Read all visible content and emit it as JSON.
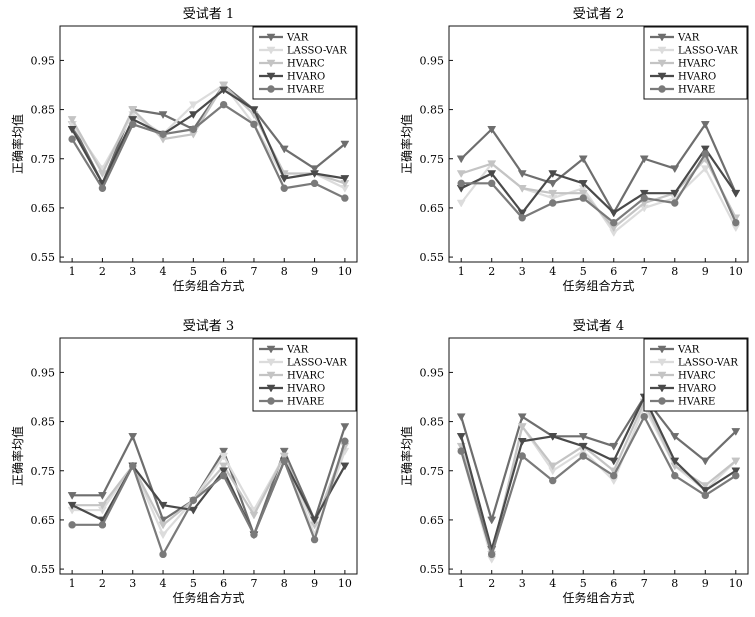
{
  "chart_data": [
    {
      "type": "line",
      "title": "受试者 1",
      "xlabel": "任务组合方式",
      "ylabel": "正确率均值",
      "x": [
        1,
        2,
        3,
        4,
        5,
        6,
        7,
        8,
        9,
        10
      ],
      "yticks": [
        "0.55",
        "0.65",
        "0.75",
        "0.85",
        "0.95"
      ],
      "ylim": [
        0.54,
        1.02
      ],
      "legend_position": "top-right",
      "series": [
        {
          "name": "VAR",
          "color": "#6e6e6e",
          "marker": "triangle-down",
          "values": [
            0.82,
            0.7,
            0.85,
            0.84,
            0.81,
            0.9,
            0.85,
            0.77,
            0.73,
            0.78
          ]
        },
        {
          "name": "LASSO-VAR",
          "color": "#dcdcdc",
          "marker": "triangle-down",
          "values": [
            0.82,
            0.73,
            0.84,
            0.8,
            0.86,
            0.9,
            0.82,
            0.71,
            0.72,
            0.69
          ]
        },
        {
          "name": "HVARC",
          "color": "#c4c4c4",
          "marker": "triangle-down",
          "values": [
            0.83,
            0.72,
            0.85,
            0.79,
            0.8,
            0.9,
            0.84,
            0.72,
            0.72,
            0.7
          ]
        },
        {
          "name": "HVARO",
          "color": "#4a4a4a",
          "marker": "triangle-down",
          "values": [
            0.81,
            0.7,
            0.83,
            0.8,
            0.84,
            0.89,
            0.85,
            0.71,
            0.72,
            0.71
          ]
        },
        {
          "name": "HVARE",
          "color": "#7a7a7a",
          "marker": "circle",
          "values": [
            0.79,
            0.69,
            0.82,
            0.8,
            0.81,
            0.86,
            0.82,
            0.69,
            0.7,
            0.67
          ]
        }
      ]
    },
    {
      "type": "line",
      "title": "受试者 2",
      "xlabel": "任务组合方式",
      "ylabel": "正确率均值",
      "x": [
        1,
        2,
        3,
        4,
        5,
        6,
        7,
        8,
        9,
        10
      ],
      "yticks": [
        "0.55",
        "0.65",
        "0.75",
        "0.85",
        "0.95"
      ],
      "ylim": [
        0.54,
        1.02
      ],
      "legend_position": "top-right",
      "series": [
        {
          "name": "VAR",
          "color": "#6e6e6e",
          "marker": "triangle-down",
          "values": [
            0.75,
            0.81,
            0.72,
            0.7,
            0.75,
            0.64,
            0.75,
            0.73,
            0.82,
            0.68
          ]
        },
        {
          "name": "LASSO-VAR",
          "color": "#dcdcdc",
          "marker": "triangle-down",
          "values": [
            0.66,
            0.74,
            0.69,
            0.67,
            0.69,
            0.6,
            0.65,
            0.67,
            0.73,
            0.61
          ]
        },
        {
          "name": "HVARC",
          "color": "#c4c4c4",
          "marker": "triangle-down",
          "values": [
            0.72,
            0.74,
            0.69,
            0.68,
            0.68,
            0.61,
            0.66,
            0.68,
            0.75,
            0.63
          ]
        },
        {
          "name": "HVARO",
          "color": "#4a4a4a",
          "marker": "triangle-down",
          "values": [
            0.69,
            0.72,
            0.64,
            0.72,
            0.7,
            0.64,
            0.68,
            0.68,
            0.77,
            0.68
          ]
        },
        {
          "name": "HVARE",
          "color": "#7a7a7a",
          "marker": "circle",
          "values": [
            0.7,
            0.7,
            0.63,
            0.66,
            0.67,
            0.62,
            0.67,
            0.66,
            0.76,
            0.62
          ]
        }
      ]
    },
    {
      "type": "line",
      "title": "受试者 3",
      "xlabel": "任务组合方式",
      "ylabel": "正确率均值",
      "x": [
        1,
        2,
        3,
        4,
        5,
        6,
        7,
        8,
        9,
        10
      ],
      "yticks": [
        "0.55",
        "0.65",
        "0.75",
        "0.85",
        "0.95"
      ],
      "ylim": [
        0.54,
        1.02
      ],
      "legend_position": "top-right",
      "series": [
        {
          "name": "VAR",
          "color": "#6e6e6e",
          "marker": "triangle-down",
          "values": [
            0.7,
            0.7,
            0.82,
            0.65,
            0.69,
            0.79,
            0.62,
            0.79,
            0.65,
            0.84
          ]
        },
        {
          "name": "LASSO-VAR",
          "color": "#dcdcdc",
          "marker": "triangle-down",
          "values": [
            0.67,
            0.67,
            0.76,
            0.62,
            0.69,
            0.78,
            0.67,
            0.78,
            0.62,
            0.79
          ]
        },
        {
          "name": "HVARC",
          "color": "#c4c4c4",
          "marker": "triangle-down",
          "values": [
            0.68,
            0.68,
            0.76,
            0.64,
            0.69,
            0.76,
            0.66,
            0.78,
            0.64,
            0.8
          ]
        },
        {
          "name": "HVARO",
          "color": "#4a4a4a",
          "marker": "triangle-down",
          "values": [
            0.68,
            0.65,
            0.76,
            0.68,
            0.67,
            0.75,
            0.62,
            0.77,
            0.65,
            0.76
          ]
        },
        {
          "name": "HVARE",
          "color": "#7a7a7a",
          "marker": "circle",
          "values": [
            0.64,
            0.64,
            0.76,
            0.58,
            0.69,
            0.74,
            0.62,
            0.77,
            0.61,
            0.81
          ]
        }
      ]
    },
    {
      "type": "line",
      "title": "受试者 4",
      "xlabel": "任务组合方式",
      "ylabel": "正确率均值",
      "x": [
        1,
        2,
        3,
        4,
        5,
        6,
        7,
        8,
        9,
        10
      ],
      "yticks": [
        "0.55",
        "0.65",
        "0.75",
        "0.85",
        "0.95"
      ],
      "ylim": [
        0.54,
        1.02
      ],
      "legend_position": "top-right",
      "series": [
        {
          "name": "VAR",
          "color": "#6e6e6e",
          "marker": "triangle-down",
          "values": [
            0.86,
            0.65,
            0.86,
            0.82,
            0.82,
            0.8,
            0.9,
            0.82,
            0.77,
            0.83
          ]
        },
        {
          "name": "LASSO-VAR",
          "color": "#dcdcdc",
          "marker": "triangle-down",
          "values": [
            0.79,
            0.57,
            0.84,
            0.75,
            0.79,
            0.73,
            0.88,
            0.76,
            0.71,
            0.77
          ]
        },
        {
          "name": "HVARC",
          "color": "#c4c4c4",
          "marker": "triangle-down",
          "values": [
            0.8,
            0.58,
            0.84,
            0.76,
            0.8,
            0.75,
            0.89,
            0.76,
            0.72,
            0.77
          ]
        },
        {
          "name": "HVARO",
          "color": "#4a4a4a",
          "marker": "triangle-down",
          "values": [
            0.82,
            0.59,
            0.81,
            0.82,
            0.8,
            0.77,
            0.9,
            0.77,
            0.71,
            0.75
          ]
        },
        {
          "name": "HVARE",
          "color": "#7a7a7a",
          "marker": "circle",
          "values": [
            0.79,
            0.58,
            0.78,
            0.73,
            0.78,
            0.74,
            0.86,
            0.74,
            0.7,
            0.74
          ]
        }
      ]
    }
  ]
}
